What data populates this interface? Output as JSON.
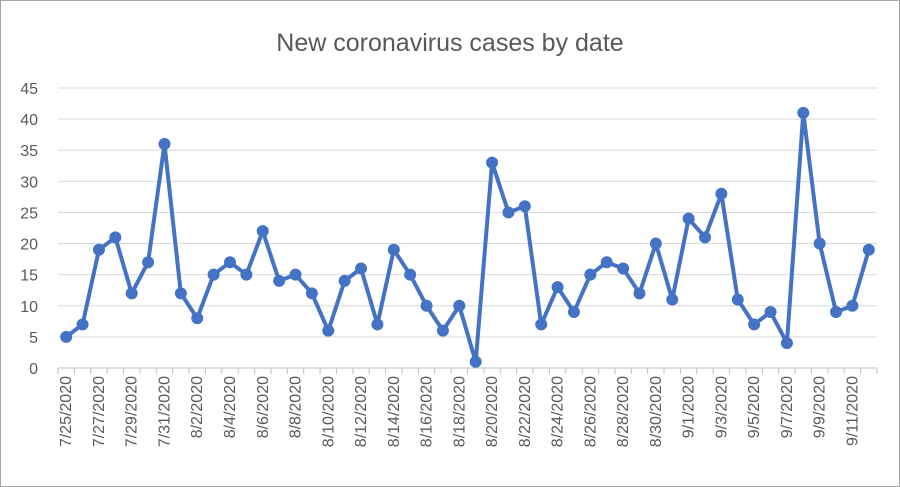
{
  "chart_data": {
    "type": "line",
    "title": "New coronavirus cases by date",
    "xlabel": "",
    "ylabel": "",
    "ylim": [
      0,
      45
    ],
    "y_ticks": [
      "0",
      "5",
      "10",
      "15",
      "20",
      "25",
      "30",
      "35",
      "40",
      "45"
    ],
    "x_ticks": [
      "7/25/2020",
      "7/27/2020",
      "7/29/2020",
      "7/31/2020",
      "8/2/2020",
      "8/4/2020",
      "8/6/2020",
      "8/8/2020",
      "8/10/2020",
      "8/12/2020",
      "8/14/2020",
      "8/16/2020",
      "8/18/2020",
      "8/20/2020",
      "8/22/2020",
      "8/24/2020",
      "8/26/2020",
      "8/28/2020",
      "8/30/2020",
      "9/1/2020",
      "9/3/2020",
      "9/5/2020",
      "9/7/2020",
      "9/9/2020",
      "9/11/2020"
    ],
    "grid": true,
    "legend": "none",
    "line_color": "#4472c4",
    "x": [
      "7/25/2020",
      "7/26/2020",
      "7/27/2020",
      "7/28/2020",
      "7/29/2020",
      "7/30/2020",
      "7/31/2020",
      "8/1/2020",
      "8/2/2020",
      "8/3/2020",
      "8/4/2020",
      "8/5/2020",
      "8/6/2020",
      "8/7/2020",
      "8/8/2020",
      "8/9/2020",
      "8/10/2020",
      "8/11/2020",
      "8/12/2020",
      "8/13/2020",
      "8/14/2020",
      "8/15/2020",
      "8/16/2020",
      "8/17/2020",
      "8/18/2020",
      "8/19/2020",
      "8/20/2020",
      "8/21/2020",
      "8/22/2020",
      "8/23/2020",
      "8/24/2020",
      "8/25/2020",
      "8/26/2020",
      "8/27/2020",
      "8/28/2020",
      "8/29/2020",
      "8/30/2020",
      "8/31/2020",
      "9/1/2020",
      "9/2/2020",
      "9/3/2020",
      "9/4/2020",
      "9/5/2020",
      "9/6/2020",
      "9/7/2020",
      "9/8/2020",
      "9/9/2020",
      "9/10/2020",
      "9/11/2020",
      "9/12/2020"
    ],
    "series": [
      {
        "values": [
          5,
          7,
          19,
          21,
          12,
          17,
          36,
          12,
          8,
          15,
          17,
          15,
          22,
          14,
          15,
          12,
          6,
          14,
          16,
          7,
          19,
          15,
          10,
          6,
          10,
          1,
          33,
          25,
          26,
          7,
          13,
          9,
          15,
          17,
          16,
          12,
          20,
          11,
          24,
          21,
          28,
          11,
          7,
          9,
          4,
          41,
          20,
          9,
          10,
          19
        ]
      }
    ]
  }
}
